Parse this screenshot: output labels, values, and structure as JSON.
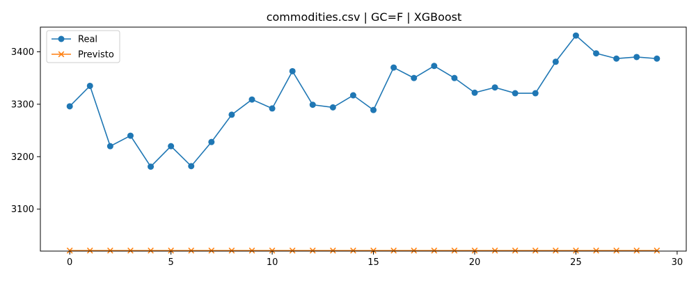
{
  "chart_data": {
    "type": "line",
    "title": "commodities.csv | GC=F | XGBoost",
    "xlabel": "",
    "ylabel": "",
    "xlim": [
      -1.45,
      30.45
    ],
    "ylim": [
      3020,
      3447
    ],
    "xticks": [
      0,
      5,
      10,
      15,
      20,
      25,
      30
    ],
    "yticks": [
      3100,
      3200,
      3300,
      3400
    ],
    "grid": false,
    "legend": "top-left",
    "x": [
      0,
      1,
      2,
      3,
      4,
      5,
      6,
      7,
      8,
      9,
      10,
      11,
      12,
      13,
      14,
      15,
      16,
      17,
      18,
      19,
      20,
      21,
      22,
      23,
      24,
      25,
      26,
      27,
      28,
      29
    ],
    "series": [
      {
        "name": "Real",
        "color": "#1f77b4",
        "marker": "circle",
        "values": [
          3296,
          3335,
          3220,
          3240,
          3181,
          3220,
          3182,
          3228,
          3280,
          3309,
          3292,
          3363,
          3299,
          3294,
          3317,
          3289,
          3370,
          3350,
          3373,
          3350,
          3322,
          3332,
          3321,
          3321,
          3381,
          3431,
          3397,
          3387,
          3390,
          3387
        ]
      },
      {
        "name": "Previsto",
        "color": "#ff7f0e",
        "marker": "x",
        "values": [
          3021,
          3021,
          3021,
          3021,
          3021,
          3021,
          3021,
          3021,
          3021,
          3021,
          3021,
          3021,
          3021,
          3021,
          3021,
          3021,
          3021,
          3021,
          3021,
          3021,
          3021,
          3021,
          3021,
          3021,
          3021,
          3021,
          3021,
          3021,
          3021,
          3021
        ]
      }
    ]
  }
}
